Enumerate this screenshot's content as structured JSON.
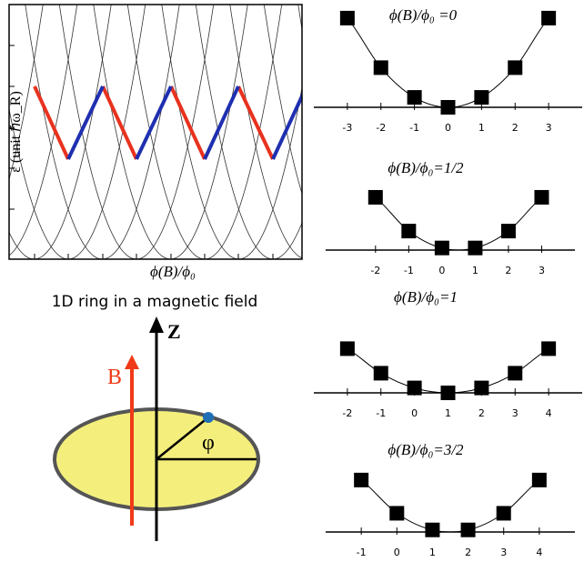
{
  "band_plot": {
    "ylabel": "ε (unit ℏω_R)",
    "xlabel": "ϕ(B)/ϕ₀"
  },
  "ring": {
    "title": "1D ring in a magnetic field",
    "z_label": "Z",
    "b_label": "B",
    "angle_label": "φ"
  },
  "chart_data": [
    {
      "type": "scatter",
      "title": "ϕ(B)/ϕ₀ =0",
      "x": [
        -3,
        -2,
        -1,
        0,
        1,
        2,
        3
      ],
      "values": [
        9,
        4,
        1,
        0,
        1,
        4,
        9
      ],
      "xlim": [
        -4,
        4
      ],
      "ylim": [
        0,
        10
      ],
      "xticks": [
        -3,
        -2,
        -1,
        0,
        1,
        2,
        3
      ],
      "color": "#000000"
    },
    {
      "type": "scatter",
      "title": "ϕ(B)/ϕ₀=1/2",
      "x": [
        -2,
        -1,
        0,
        1,
        2,
        3
      ],
      "values": [
        6.25,
        2.25,
        0.25,
        0.25,
        2.25,
        6.25
      ],
      "xlim": [
        -3.5,
        4
      ],
      "ylim": [
        0,
        7
      ],
      "xticks": [
        -2,
        -1,
        0,
        1,
        2,
        3
      ],
      "color": "#000000"
    },
    {
      "type": "scatter",
      "title": "ϕ(B)/ϕ₀=1",
      "x": [
        -2,
        -1,
        0,
        1,
        2,
        3,
        4
      ],
      "values": [
        9,
        4,
        1,
        0,
        1,
        4,
        9
      ],
      "xlim": [
        -3,
        5
      ],
      "ylim": [
        0,
        10
      ],
      "xticks": [
        -2,
        -1,
        0,
        1,
        2,
        3,
        4
      ],
      "color": "#000000"
    },
    {
      "type": "scatter",
      "title": "ϕ(B)/ϕ₀=3/2",
      "x": [
        -1,
        0,
        1,
        2,
        3,
        4
      ],
      "values": [
        6.25,
        2.25,
        0.25,
        0.25,
        2.25,
        6.25
      ],
      "xlim": [
        -2,
        5
      ],
      "ylim": [
        0,
        7
      ],
      "xticks": [
        -1,
        0,
        1,
        2,
        3,
        4
      ],
      "color": "#000000"
    }
  ]
}
